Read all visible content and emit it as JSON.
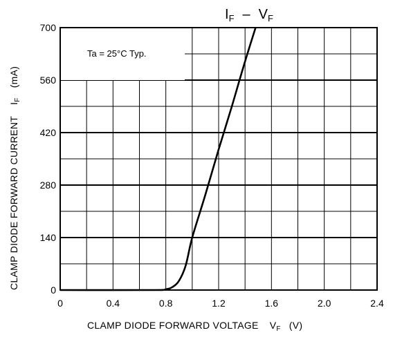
{
  "chart_data": {
    "type": "line",
    "title": {
      "main": "I",
      "sub1": "F",
      "dash": "–",
      "main2": "V",
      "sub2": "F"
    },
    "xlabel": {
      "text": "CLAMP DIODE FORWARD VOLTAGE",
      "sym": "V",
      "sub": "F",
      "unit": "(V)"
    },
    "ylabel": {
      "text": "CLAMP DIODE FORWARD CURRENT",
      "sym": "I",
      "sub": "F",
      "unit": "(mA)"
    },
    "annotation": "Ta = 25°C Typ.",
    "xlim": [
      0,
      2.4
    ],
    "ylim": [
      0,
      700
    ],
    "xticks": [
      0,
      0.4,
      0.8,
      1.2,
      1.6,
      2.0,
      2.4
    ],
    "xtick_labels": [
      "0",
      "0.4",
      "0.8",
      "1.2",
      "1.6",
      "2.0",
      "2.4"
    ],
    "yticks": [
      0,
      140,
      280,
      420,
      560,
      700
    ],
    "ytick_labels": [
      "0",
      "140",
      "280",
      "420",
      "560",
      "700"
    ],
    "minor_grid": {
      "x_step": 0.2,
      "y_step": 70
    },
    "grid": true,
    "series": [
      {
        "x": [
          0,
          0.7,
          0.8,
          0.85,
          0.9,
          0.95,
          1.0,
          1.1,
          1.2,
          1.3,
          1.4,
          1.48
        ],
        "y": [
          0,
          0,
          2,
          8,
          25,
          65,
          140,
          255,
          375,
          490,
          610,
          700
        ]
      }
    ]
  }
}
